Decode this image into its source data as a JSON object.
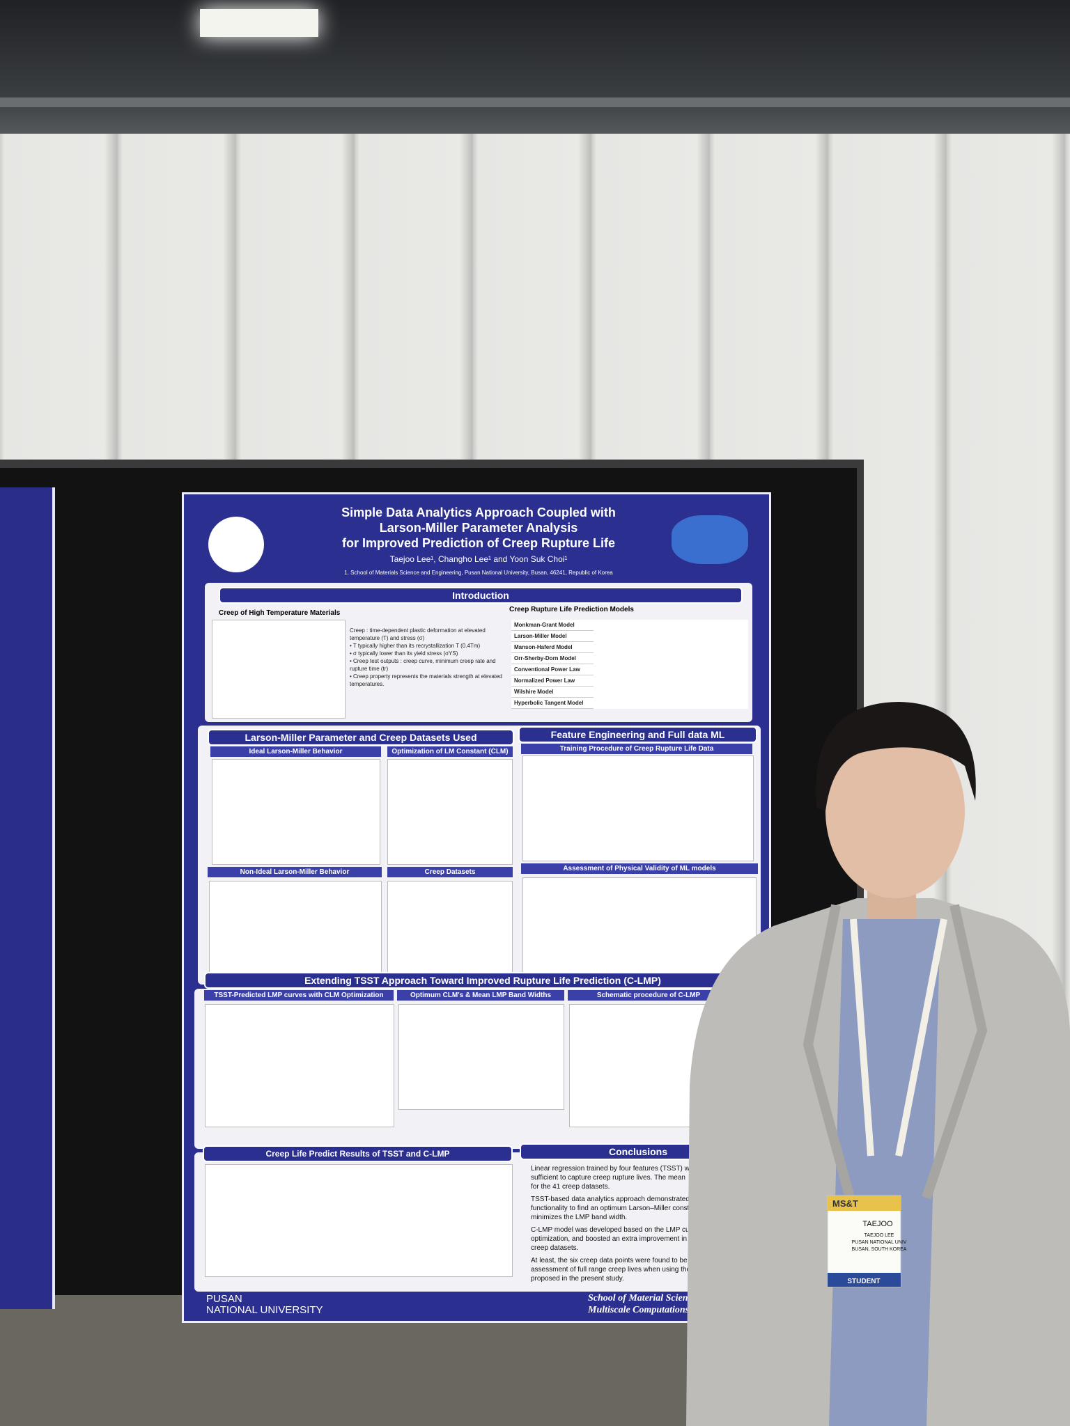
{
  "poster": {
    "title": [
      "Simple Data Analytics Approach Coupled with",
      "Larson-Miller Parameter Analysis",
      "for Improved Prediction of Creep Rupture Life"
    ],
    "authors": "Taejoo Lee¹, Changho Lee¹ and Yoon Suk Choi¹",
    "affiliation": "1. School of Materials Science and Engineering, Pusan National University, Busan, 46241, Republic of Korea",
    "intro": {
      "heading": "Introduction",
      "left_title": "Creep of High Temperature Materials",
      "right_title": "Creep Rupture Life Prediction Models",
      "bullets": [
        "Creep : time-dependent plastic deformation at elevated temperature (T) and stress (σ)",
        "• T typically higher than its recrystallization T (0.4Tm)",
        "• σ typically lower than its yield stress (σYS)",
        "• Creep test outputs : creep curve, minimum creep rate and rupture time (tr)",
        "• Creep property represents the materials strength at elevated temperatures."
      ],
      "models": [
        "Monkman-Grant Model",
        "Larson-Miller Model",
        "Manson-Haferd Model",
        "Orr-Sherby-Dorn Model",
        "Conventional Power Law",
        "Normalized Power Law",
        "Wilshire Model",
        "Hyperbolic Tangent Model"
      ]
    },
    "sections": [
      "Larson-Miller Parameter and Creep Datasets Used",
      "Feature Engineering and Full data ML",
      "Extending TSST Approach Toward Improved Rupture Life Prediction (C-LMP)",
      "Creep Life Predict Results of TSST and C-LMP",
      "Conclusions"
    ],
    "subsections": [
      "Ideal Larson-Miller Behavior",
      "Optimization of LM Constant (CLM)",
      "Training Procedure of Creep Rupture Life Data",
      "Non-Ideal Larson-Miller Behavior",
      "Creep Datasets",
      "Assessment of Physical Validity of ML models",
      "TSST-Predicted LMP curves with CLM Optimization",
      "Optimum CLM's & Mean LMP Band Widths",
      "Schematic procedure of C-LMP"
    ],
    "conclusions": [
      "Linear regression trained by four features (TSST) w",
      "sufficient to capture creep rupture lives. The mean",
      "for the 41 creep datasets.",
      "TSST-based data analytics approach demonstrated",
      "functionality to find an optimum Larson–Miller consta",
      "minimizes the LMP band width.",
      "C-LMP model was developed based on the LMP curv",
      "optimization, and boosted an extra improvement in p",
      "creep datasets.",
      "At least, the six creep data points were found to be re",
      "assessment of full range creep lives when using the p",
      "proposed in the present study."
    ],
    "footer_left": [
      "PUSAN",
      "NATIONAL UNIVERSITY"
    ],
    "footer_right": [
      "School of Material Science &",
      "Multiscale Computations &"
    ]
  },
  "badge": {
    "name": "TAEJOO",
    "line1": "TAEJOO LEE",
    "line2": "PUSAN NATIONAL UNIV",
    "line3": "BUSAN, SOUTH KOREA",
    "role": "STUDENT",
    "event": "MS&T"
  }
}
